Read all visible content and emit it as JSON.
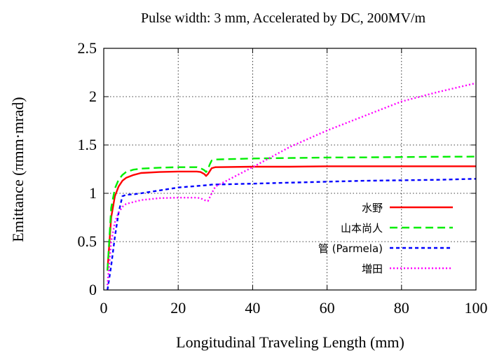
{
  "chart_data": {
    "type": "line",
    "title": "Pulse width: 3 mm, Accelerated by DC, 200MV/m",
    "xlabel": "Longitudinal Traveling Length (mm)",
    "ylabel": "Emittance (πmm·mrad)",
    "xlim": [
      0,
      100
    ],
    "ylim": [
      0,
      2.5
    ],
    "xticks": [
      0,
      20,
      40,
      60,
      80,
      100
    ],
    "yticks": [
      0,
      0.5,
      1,
      1.5,
      2,
      2.5
    ],
    "grid": true,
    "legend_position": "bottom-right",
    "series": [
      {
        "name": "水野",
        "color": "#ff0000",
        "dash": "solid",
        "x": [
          1,
          2,
          3,
          4,
          5,
          6,
          8,
          10,
          15,
          20,
          25,
          26,
          27,
          27.5,
          28,
          28.5,
          29,
          30,
          40,
          50,
          60,
          70,
          80,
          90,
          100
        ],
        "y": [
          0.2,
          0.75,
          0.97,
          1.07,
          1.13,
          1.16,
          1.19,
          1.21,
          1.22,
          1.225,
          1.225,
          1.22,
          1.2,
          1.18,
          1.2,
          1.23,
          1.26,
          1.27,
          1.275,
          1.275,
          1.28,
          1.28,
          1.28,
          1.28,
          1.28
        ]
      },
      {
        "name": "山本尚人",
        "color": "#00ee00",
        "dash": "long",
        "x": [
          1,
          2,
          3,
          4,
          5,
          6,
          8,
          10,
          15,
          20,
          25,
          26,
          27,
          27.5,
          28,
          28.5,
          29,
          30,
          40,
          50,
          60,
          70,
          80,
          90,
          100
        ],
        "y": [
          0.2,
          0.85,
          1.05,
          1.14,
          1.19,
          1.22,
          1.245,
          1.255,
          1.265,
          1.27,
          1.27,
          1.26,
          1.24,
          1.22,
          1.25,
          1.3,
          1.34,
          1.35,
          1.36,
          1.365,
          1.37,
          1.372,
          1.375,
          1.378,
          1.38
        ]
      },
      {
        "name": "管 (Parmela)",
        "color": "#0000ff",
        "dash": "short",
        "x": [
          1,
          2,
          3,
          4,
          5,
          6,
          8,
          10,
          20,
          28,
          29,
          40,
          50,
          60,
          70,
          80,
          90,
          100
        ],
        "y": [
          0.0,
          0.25,
          0.55,
          0.8,
          0.97,
          0.985,
          0.99,
          1.0,
          1.06,
          1.085,
          1.09,
          1.1,
          1.11,
          1.12,
          1.13,
          1.135,
          1.14,
          1.15
        ]
      },
      {
        "name": "増田",
        "color": "#ff00ff",
        "dash": "dotted",
        "x": [
          1,
          2,
          3,
          4,
          5,
          6,
          8,
          10,
          15,
          20,
          25,
          26,
          27,
          28,
          29,
          30,
          40,
          50,
          60,
          70,
          80,
          90,
          100
        ],
        "y": [
          0.05,
          0.5,
          0.7,
          0.8,
          0.86,
          0.89,
          0.91,
          0.93,
          0.95,
          0.955,
          0.955,
          0.95,
          0.93,
          0.92,
          1.0,
          1.07,
          1.27,
          1.48,
          1.65,
          1.8,
          1.95,
          2.05,
          2.14
        ]
      }
    ]
  }
}
